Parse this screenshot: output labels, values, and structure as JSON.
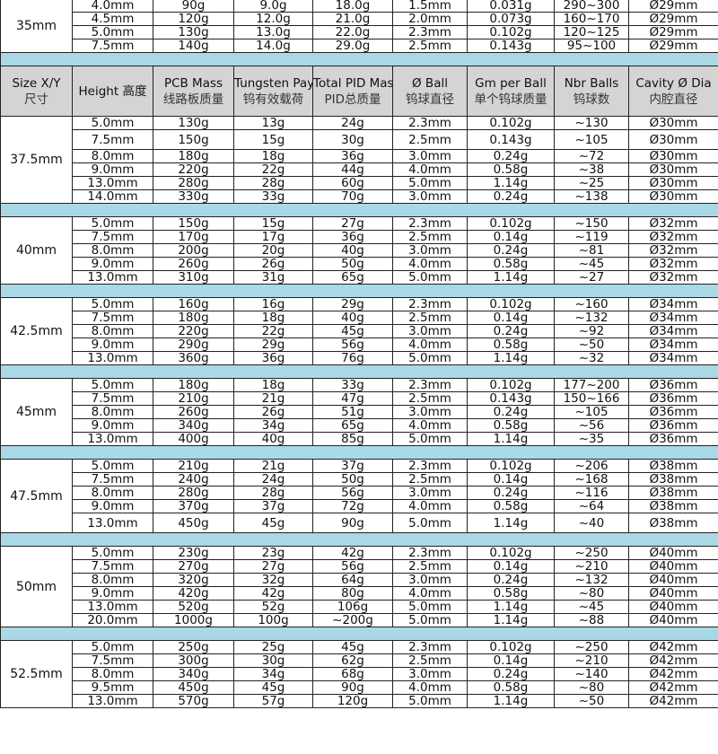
{
  "colors": {
    "header_bg": "#d4d4d4",
    "band_bg": "#a9d9e6",
    "border": "#222222"
  },
  "header": [
    {
      "en": "Size X/Y",
      "zh": "尺寸"
    },
    {
      "en": "Height 高度",
      "zh": ""
    },
    {
      "en": "PCB Mass",
      "zh": "线路板质量"
    },
    {
      "en": "Tungsten Payload",
      "zh": "钨有效载荷"
    },
    {
      "en": "Total PID Mass",
      "zh": "PID总质量"
    },
    {
      "en": "Ø Ball",
      "zh": "钨球直径"
    },
    {
      "en": "Gm per Ball",
      "zh": "单个钨球质量"
    },
    {
      "en": "Nbr Balls",
      "zh": "钨球数"
    },
    {
      "en": "Cavity Ø Dia",
      "zh": "内腔直径"
    }
  ],
  "groups": [
    {
      "size": "35mm",
      "rows": [
        [
          "4.0mm",
          "90g",
          "9.0g",
          "18.0g",
          "1.5mm",
          "0.031g",
          "290~300",
          "Ø29mm"
        ],
        [
          "4.5mm",
          "120g",
          "12.0g",
          "21.0g",
          "2.0mm",
          "0.073g",
          "160~170",
          "Ø29mm"
        ],
        [
          "5.0mm",
          "130g",
          "13.0g",
          "22.0g",
          "2.3mm",
          "0.102g",
          "120~125",
          "Ø29mm"
        ],
        [
          "7.5mm",
          "140g",
          "14.0g",
          "29.0g",
          "2.5mm",
          "0.143g",
          "95~100",
          "Ø29mm"
        ]
      ]
    },
    {
      "size": "37.5mm",
      "rows": [
        [
          "5.0mm",
          "130g",
          "13g",
          "24g",
          "2.3mm",
          "0.102g",
          "~130",
          "Ø30mm"
        ],
        [
          "7.5mm",
          "150g",
          "15g",
          "30g",
          "2.5mm",
          "0.143g",
          "~105",
          "Ø30mm"
        ],
        [
          "8.0mm",
          "180g",
          "18g",
          "36g",
          "3.0mm",
          "0.24g",
          "~72",
          "Ø30mm"
        ],
        [
          "9.0mm",
          "220g",
          "22g",
          "44g",
          "4.0mm",
          "0.58g",
          "~38",
          "Ø30mm"
        ],
        [
          "13.0mm",
          "280g",
          "28g",
          "60g",
          "5.0mm",
          "1.14g",
          "~25",
          "Ø30mm"
        ],
        [
          "14.0mm",
          "330g",
          "33g",
          "70g",
          "3.0mm",
          "0.24g",
          "~138",
          "Ø30mm"
        ]
      ]
    },
    {
      "size": "40mm",
      "rows": [
        [
          "5.0mm",
          "150g",
          "15g",
          "27g",
          "2.3mm",
          "0.102g",
          "~150",
          "Ø32mm"
        ],
        [
          "7.5mm",
          "170g",
          "17g",
          "36g",
          "2.5mm",
          "0.14g",
          "~119",
          "Ø32mm"
        ],
        [
          "8.0mm",
          "200g",
          "20g",
          "40g",
          "3.0mm",
          "0.24g",
          "~81",
          "Ø32mm"
        ],
        [
          "9.0mm",
          "260g",
          "26g",
          "50g",
          "4.0mm",
          "0.58g",
          "~45",
          "Ø32mm"
        ],
        [
          "13.0mm",
          "310g",
          "31g",
          "65g",
          "5.0mm",
          "1.14g",
          "~27",
          "Ø32mm"
        ]
      ]
    },
    {
      "size": "42.5mm",
      "rows": [
        [
          "5.0mm",
          "160g",
          "16g",
          "29g",
          "2.3mm",
          "0.102g",
          "~160",
          "Ø34mm"
        ],
        [
          "7.5mm",
          "180g",
          "18g",
          "40g",
          "2.5mm",
          "0.14g",
          "~132",
          "Ø34mm"
        ],
        [
          "8.0mm",
          "220g",
          "22g",
          "45g",
          "3.0mm",
          "0.24g",
          "~92",
          "Ø34mm"
        ],
        [
          "9.0mm",
          "290g",
          "29g",
          "56g",
          "4.0mm",
          "0.58g",
          "~50",
          "Ø34mm"
        ],
        [
          "13.0mm",
          "360g",
          "36g",
          "76g",
          "5.0mm",
          "1.14g",
          "~32",
          "Ø34mm"
        ]
      ]
    },
    {
      "size": "45mm",
      "rows": [
        [
          "5.0mm",
          "180g",
          "18g",
          "33g",
          "2.3mm",
          "0.102g",
          "177~200",
          "Ø36mm"
        ],
        [
          "7.5mm",
          "210g",
          "21g",
          "47g",
          "2.5mm",
          "0.143g",
          "150~166",
          "Ø36mm"
        ],
        [
          "8.0mm",
          "260g",
          "26g",
          "51g",
          "3.0mm",
          "0.24g",
          "~105",
          "Ø36mm"
        ],
        [
          "9.0mm",
          "340g",
          "34g",
          "65g",
          "4.0mm",
          "0.58g",
          "~56",
          "Ø36mm"
        ],
        [
          "13.0mm",
          "400g",
          "40g",
          "85g",
          "5.0mm",
          "1.14g",
          "~35",
          "Ø36mm"
        ]
      ]
    },
    {
      "size": "47.5mm",
      "rows": [
        [
          "5.0mm",
          "210g",
          "21g",
          "37g",
          "2.3mm",
          "0.102g",
          "~206",
          "Ø38mm"
        ],
        [
          "7.5mm",
          "240g",
          "24g",
          "50g",
          "2.5mm",
          "0.14g",
          "~168",
          "Ø38mm"
        ],
        [
          "8.0mm",
          "280g",
          "28g",
          "56g",
          "3.0mm",
          "0.24g",
          "~116",
          "Ø38mm"
        ],
        [
          "9.0mm",
          "370g",
          "37g",
          "72g",
          "4.0mm",
          "0.58g",
          "~64",
          "Ø38mm"
        ],
        [
          "13.0mm",
          "450g",
          "45g",
          "90g",
          "5.0mm",
          "1.14g",
          "~40",
          "Ø38mm"
        ]
      ]
    },
    {
      "size": "50mm",
      "rows": [
        [
          "5.0mm",
          "230g",
          "23g",
          "42g",
          "2.3mm",
          "0.102g",
          "~250",
          "Ø40mm"
        ],
        [
          "7.5mm",
          "270g",
          "27g",
          "56g",
          "2.5mm",
          "0.14g",
          "~210",
          "Ø40mm"
        ],
        [
          "8.0mm",
          "320g",
          "32g",
          "64g",
          "3.0mm",
          "0.24g",
          "~132",
          "Ø40mm"
        ],
        [
          "9.0mm",
          "420g",
          "42g",
          "80g",
          "4.0mm",
          "0.58g",
          "~80",
          "Ø40mm"
        ],
        [
          "13.0mm",
          "520g",
          "52g",
          "106g",
          "5.0mm",
          "1.14g",
          "~45",
          "Ø40mm"
        ],
        [
          "20.0mm",
          "1000g",
          "100g",
          "~200g",
          "5.0mm",
          "1.14g",
          "~88",
          "Ø40mm"
        ]
      ]
    },
    {
      "size": "52.5mm",
      "rows": [
        [
          "5.0mm",
          "250g",
          "25g",
          "45g",
          "2.3mm",
          "0.102g",
          "~250",
          "Ø42mm"
        ],
        [
          "7.5mm",
          "300g",
          "30g",
          "62g",
          "2.5mm",
          "0.14g",
          "~210",
          "Ø42mm"
        ],
        [
          "8.0mm",
          "340g",
          "34g",
          "68g",
          "3.0mm",
          "0.24g",
          "~140",
          "Ø42mm"
        ],
        [
          "9.5mm",
          "450g",
          "45g",
          "90g",
          "4.0mm",
          "0.58g",
          "~80",
          "Ø42mm"
        ],
        [
          "13.0mm",
          "570g",
          "57g",
          "120g",
          "5.0mm",
          "1.14g",
          "~50",
          "Ø42mm"
        ]
      ]
    }
  ]
}
